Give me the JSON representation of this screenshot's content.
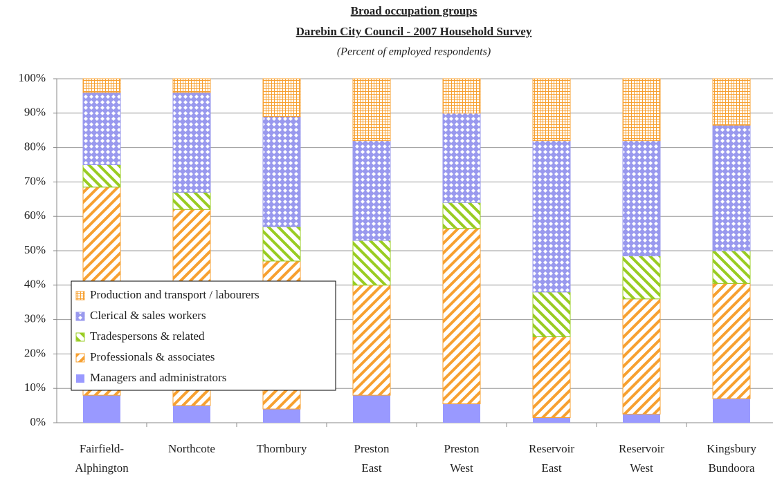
{
  "chart_data": {
    "type": "stacked-bar",
    "title": "Broad occupation groups",
    "subtitle": "Darebin City Council - 2007 Household Survey",
    "annotation": "(Percent of employed respondents)",
    "categories": [
      [
        "Fairfield-",
        "Alphington"
      ],
      [
        "Northcote"
      ],
      [
        "Thornbury"
      ],
      [
        "Preston",
        "East"
      ],
      [
        "Preston",
        "West"
      ],
      [
        "Reservoir",
        "East"
      ],
      [
        "Reservoir",
        "West"
      ],
      [
        "Kingsbury",
        "Bundoora"
      ]
    ],
    "series": [
      {
        "name": "Managers and administrators",
        "color": "#9999ff",
        "values": [
          8,
          5,
          4,
          8,
          5.5,
          1.5,
          2.5,
          7
        ]
      },
      {
        "name": "Professionals & associates",
        "color": "#f7a030",
        "values": [
          60.5,
          57,
          43,
          32,
          51,
          23.5,
          33.5,
          33.5
        ]
      },
      {
        "name": "Tradespersons & related",
        "color": "#99cc22",
        "values": [
          6.5,
          5,
          10,
          13,
          7.5,
          13,
          12.5,
          9.5
        ]
      },
      {
        "name": "Clerical & sales workers",
        "color": "#9999ee",
        "values": [
          21,
          29,
          32,
          29,
          26,
          44,
          33.5,
          36.5
        ]
      },
      {
        "name": "Production and transport / labourers",
        "color": "#f7a030",
        "values": [
          4,
          4,
          11,
          18,
          10,
          18,
          18,
          13.5
        ]
      }
    ],
    "ylim": [
      0,
      100
    ],
    "yticks": [
      {
        "value": 0,
        "label": "0%"
      },
      {
        "value": 10,
        "label": "10%"
      },
      {
        "value": 20,
        "label": "20%"
      },
      {
        "value": 30,
        "label": "30%"
      },
      {
        "value": 40,
        "label": "40%"
      },
      {
        "value": 50,
        "label": "50%"
      },
      {
        "value": 60,
        "label": "60%"
      },
      {
        "value": 70,
        "label": "70%"
      },
      {
        "value": 80,
        "label": "80%"
      },
      {
        "value": 90,
        "label": "90%"
      },
      {
        "value": 100,
        "label": "100%"
      }
    ],
    "grid": true
  }
}
